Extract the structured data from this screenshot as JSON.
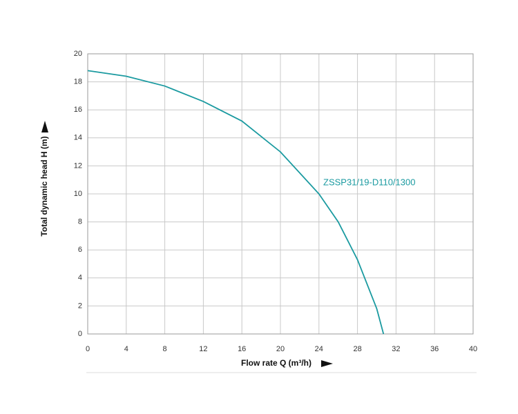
{
  "chart_data": {
    "type": "line",
    "x_label": "Flow rate Q (m³/h)",
    "y_label": "Total dynamic head H (m)",
    "x": [
      0,
      4,
      8,
      12,
      16,
      20,
      24,
      26,
      28,
      30,
      30.7
    ],
    "series": [
      {
        "name": "ZSSP31/19-D110/1300",
        "color": "#1a9aa0",
        "values": [
          18.8,
          18.4,
          17.7,
          16.6,
          15.2,
          13.0,
          10.0,
          8.0,
          5.3,
          1.8,
          0
        ]
      }
    ],
    "xlim": [
      0,
      40
    ],
    "xticks": [
      0,
      4,
      8,
      12,
      16,
      20,
      24,
      28,
      32,
      36,
      40
    ],
    "ylim": [
      0,
      20
    ],
    "yticks": [
      0,
      2,
      4,
      6,
      8,
      10,
      12,
      14,
      16,
      18,
      20
    ],
    "grid": true
  }
}
